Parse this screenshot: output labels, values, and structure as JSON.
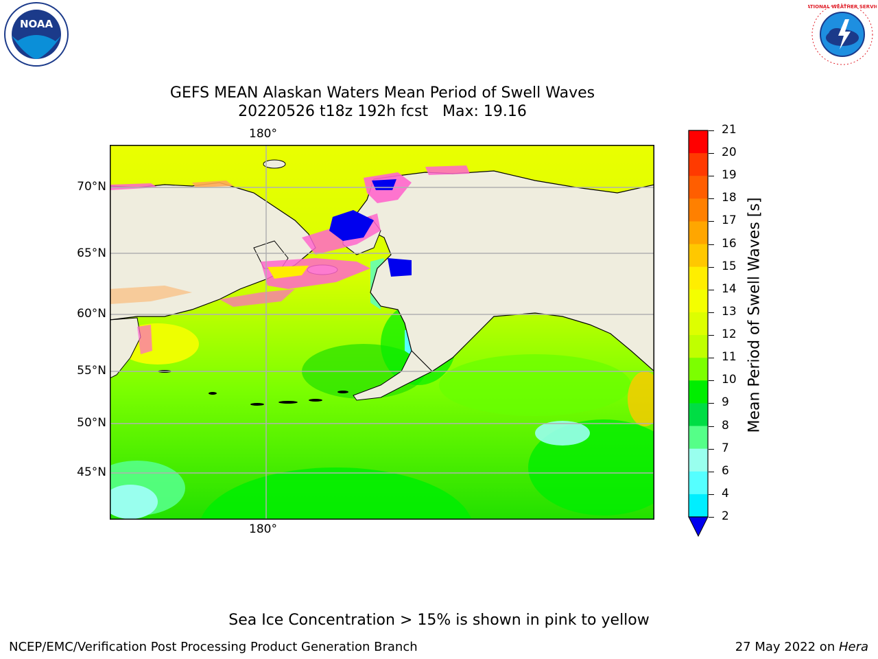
{
  "title": {
    "line1": "GEFS MEAN Alaskan Waters Mean Period of Swell Waves",
    "line2": "20220526 t18z 192h fcst   Max: 19.16"
  },
  "map": {
    "lat_labels": [
      "70°N",
      "65°N",
      "60°N",
      "55°N",
      "50°N",
      "45°N"
    ],
    "lon_top": "180°",
    "lon_bottom": "180°",
    "land_color": "#efedde",
    "gridline_color": "#b0b0b0"
  },
  "colorbar": {
    "title": "Mean Period of Swell Waves [s]",
    "ticks": [
      "21",
      "20",
      "19",
      "18",
      "17",
      "16",
      "15",
      "14",
      "13",
      "12",
      "11",
      "10",
      "9",
      "8",
      "7",
      "6",
      "4",
      "2"
    ],
    "colors_top_to_bottom": [
      "#ff0000",
      "#ff3a00",
      "#ff5e00",
      "#ff8000",
      "#ffa600",
      "#ffc800",
      "#ffee00",
      "#f4ff00",
      "#ddff00",
      "#c0ff00",
      "#7cff00",
      "#00ee00",
      "#00dd44",
      "#55ff88",
      "#99ffee",
      "#55ffff",
      "#00eeff",
      "#0088ff",
      "#0044ff"
    ],
    "extend_color": "#0000ee"
  },
  "footer": {
    "note": "Sea Ice Concentration > 15% is shown in pink to yellow",
    "left": "NCEP/EMC/Verification Post Processing Product Generation Branch",
    "right_date": "27 May 2022 on ",
    "right_host": "Hera"
  },
  "logos": {
    "noaa_text": "NOAA",
    "nws_text": "NATIONAL WEATHER SERVICE"
  }
}
